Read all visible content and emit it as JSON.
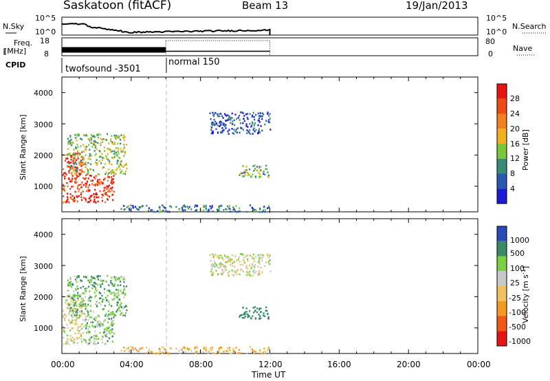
{
  "header": {
    "station": "Saskatoon (fitACF)",
    "beam": "Beam 13",
    "date": "19/Jan/2013"
  },
  "time_axis": {
    "labels": [
      "00:00",
      "04:00",
      "08:00",
      "12:00",
      "16:00",
      "20:00",
      "00:00"
    ],
    "label": "Time UT"
  },
  "strips": {
    "nsky_label": "N.Sky",
    "nsky_ticks": [
      "10^5",
      "10^0"
    ],
    "nsearch_label": "N.Search",
    "nsearch_ticks": [
      "10^5",
      "10^0"
    ],
    "freq_label_1": "Freq.",
    "freq_label_2": "[MHz]",
    "freq_ticks": [
      "18",
      "8"
    ],
    "nave_label": "Nave",
    "nave_ticks": [
      "80",
      "0"
    ],
    "cpid_label": "CPID",
    "cpid_1": "twofsound -3501",
    "cpid_2": "normal 150"
  },
  "panels": {
    "ylabel": "Slant Range [km]",
    "yticks": [
      "4000",
      "3000",
      "2000",
      "1000"
    ],
    "power_label": "Power [dB]",
    "power_ticks": [
      "28",
      "24",
      "20",
      "16",
      "12",
      "8",
      "4"
    ],
    "velocity_label": "Velocity [m s",
    "velocity_sup": "-1",
    "velocity_label_end": "]",
    "velocity_ticks": [
      "1000",
      "500",
      "100",
      "25",
      "-25",
      "-100",
      "-500",
      "-1000"
    ]
  },
  "colors": {
    "power_scale": [
      "#1a1ad8",
      "#2a5ab0",
      "#3a8a7a",
      "#7ac83a",
      "#f0b020",
      "#f08020",
      "#f04a14",
      "#e81414"
    ],
    "velocity_scale": [
      "#e81414",
      "#f05a14",
      "#f09a20",
      "#f0c060",
      "#c8c8c8",
      "#7ad040",
      "#3a8a6a",
      "#2a4ab8"
    ]
  },
  "chart_data": {
    "type": "heatmap",
    "x_range_hours": [
      0,
      24
    ],
    "y_range_km": [
      180,
      4500
    ],
    "power_colorbar_range_db": [
      0,
      32
    ],
    "velocity_colorbar_range": [
      -1500,
      1500
    ],
    "scatter_regions": [
      {
        "t_start": 0.0,
        "t_end": 1.2,
        "range_start": 500,
        "range_end": 2100,
        "power_db": 28,
        "velocity": -15
      },
      {
        "t_start": 1.2,
        "t_end": 3.0,
        "range_start": 500,
        "range_end": 1400,
        "power_db": 28,
        "velocity": 60
      },
      {
        "t_start": 0.3,
        "t_end": 3.7,
        "range_start": 1400,
        "range_end": 2700,
        "power_db": 14,
        "velocity": 80
      },
      {
        "t_start": 10.2,
        "t_end": 11.9,
        "range_start": 1300,
        "range_end": 1700,
        "power_db": 13,
        "velocity": 200
      },
      {
        "t_start": 8.5,
        "t_end": 12.0,
        "range_start": 2700,
        "range_end": 3400,
        "power_db": 6,
        "velocity": 0
      },
      {
        "t_start": 3.3,
        "t_end": 12.0,
        "range_start": 200,
        "range_end": 420,
        "power_db": 8,
        "velocity": -80
      }
    ],
    "nsky_range": [
      0,
      5
    ],
    "freq_range_mhz": [
      8,
      18
    ],
    "freq_value_mhz": 10.5,
    "cpid_change_hour": 6.0
  }
}
